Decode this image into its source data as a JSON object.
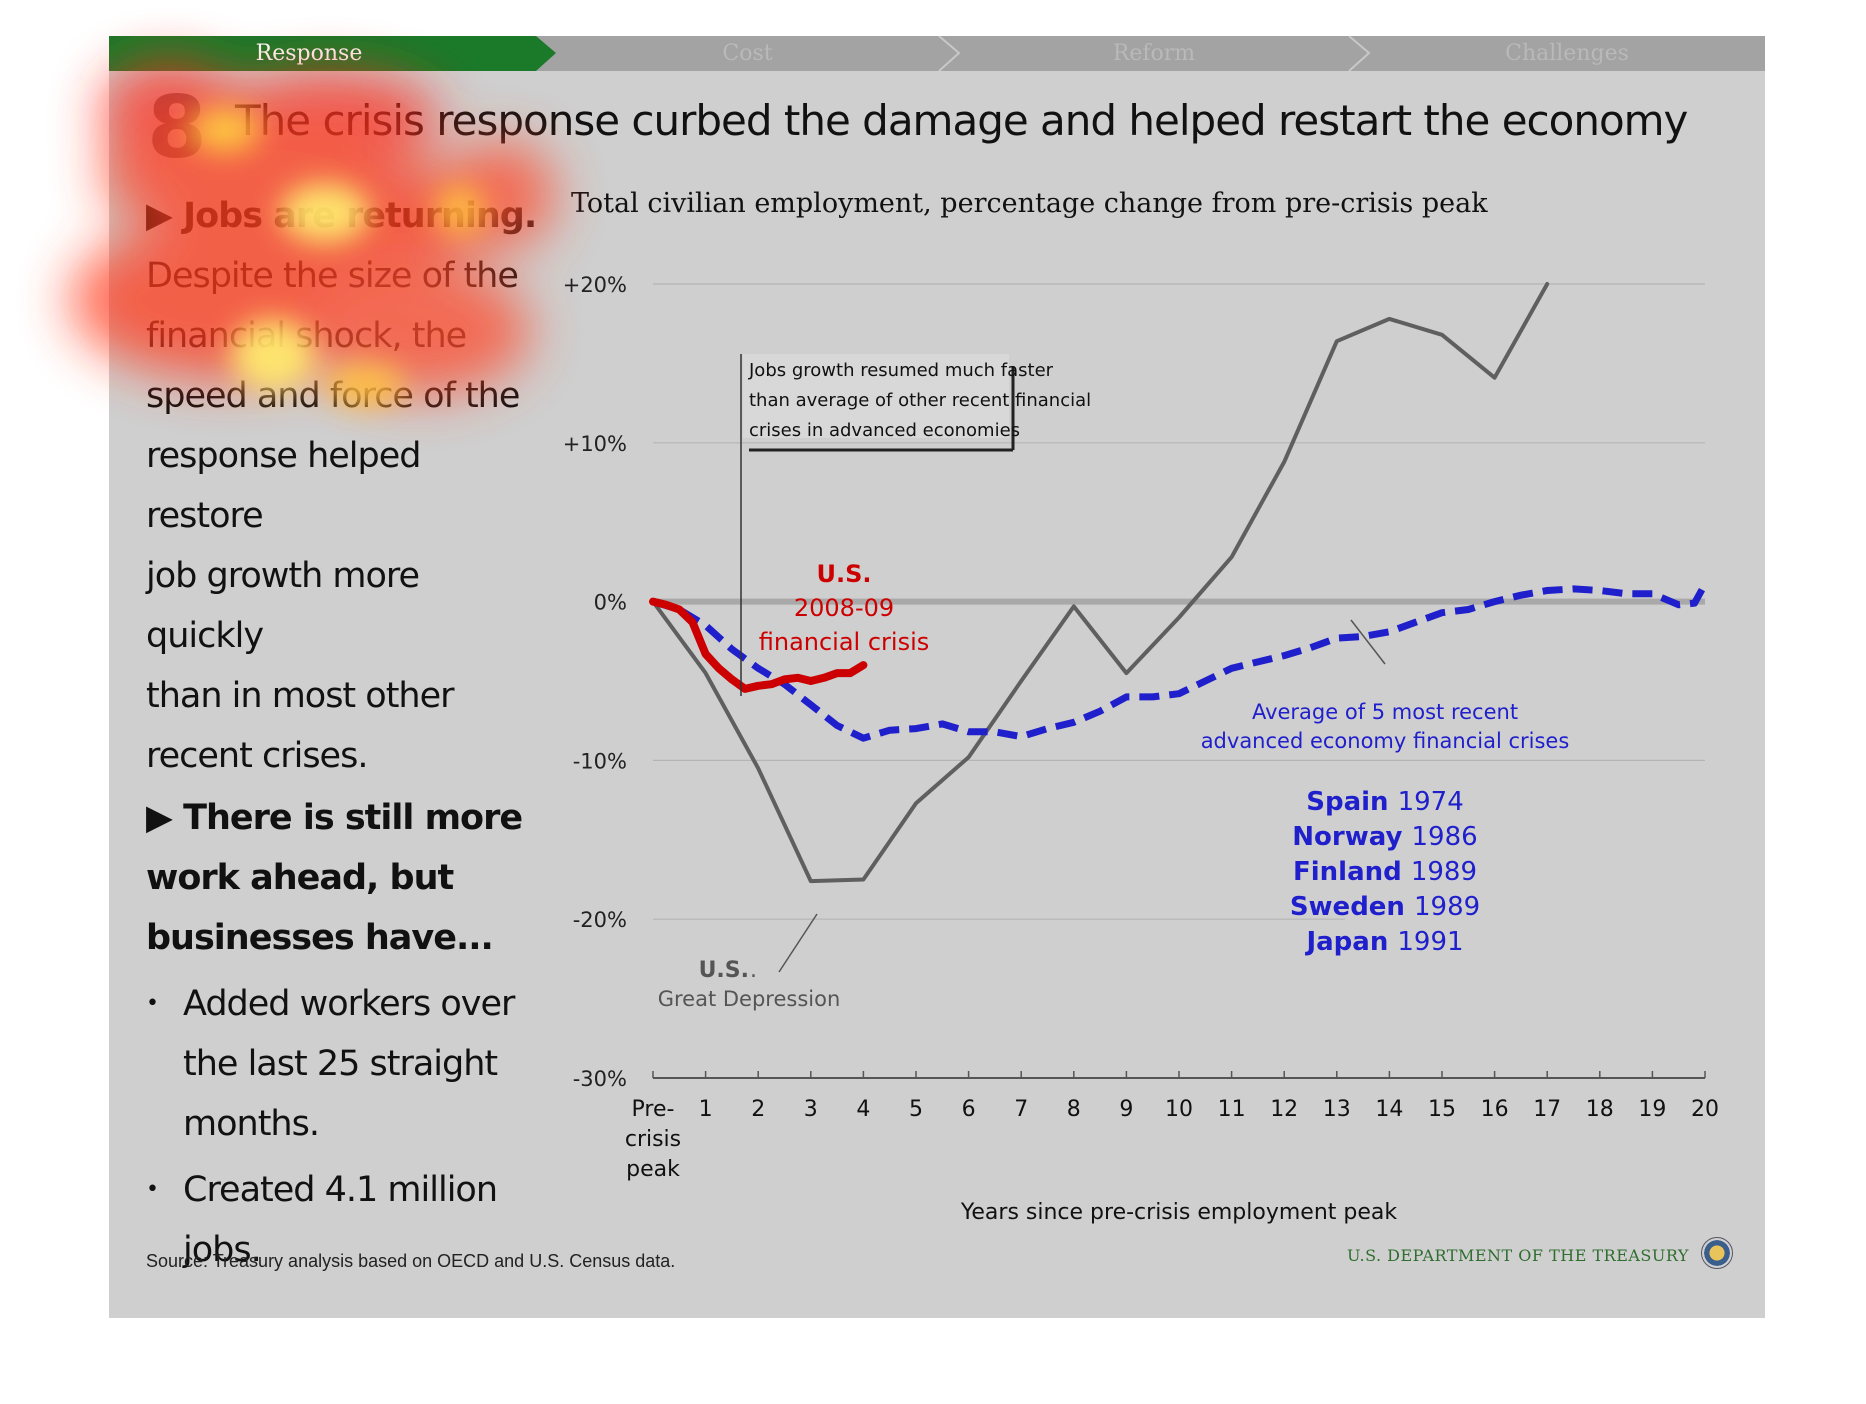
{
  "nav": {
    "tabs": [
      {
        "label": "Response",
        "active": true
      },
      {
        "label": "Cost",
        "active": false
      },
      {
        "label": "Reform",
        "active": false
      },
      {
        "label": "Challenges",
        "active": false
      }
    ],
    "active_color": "#1a7a2a"
  },
  "slide": {
    "number": "8",
    "title": "The crisis response curbed the damage and helped restart the economy"
  },
  "left": {
    "heading1_arrow": "▶",
    "heading1": "Jobs are returning.",
    "body1_lines": [
      "Despite the size of the",
      "financial shock, the",
      "speed and force of the",
      "response helped restore",
      "job growth more quickly",
      "than in most other",
      "recent crises."
    ],
    "heading2_lines": [
      "There is still more",
      "work ahead, but",
      "businesses have..."
    ],
    "bullet_mark": "•",
    "bullet1_lines": [
      "Added workers over",
      "the last 25 straight",
      "months."
    ],
    "bullet2_lines": [
      "Created 4.1 million",
      "jobs."
    ]
  },
  "chart_data": {
    "type": "line",
    "title": "Total civilian employment, percentage change from pre-crisis peak",
    "xlabel": "Years since pre-crisis employment peak",
    "ylabel": "",
    "xlim": [
      0,
      20
    ],
    "ylim": [
      -30,
      20
    ],
    "x_tick_labels": [
      "Pre-\ncrisis\npeak",
      "1",
      "2",
      "3",
      "4",
      "5",
      "6",
      "7",
      "8",
      "9",
      "10",
      "11",
      "12",
      "13",
      "14",
      "15",
      "16",
      "17",
      "18",
      "19",
      "20"
    ],
    "y_ticks": [
      {
        "value": 20,
        "label": "+20%"
      },
      {
        "value": 10,
        "label": "+10%"
      },
      {
        "value": 0,
        "label": "0%"
      },
      {
        "value": -10,
        "label": "-10%"
      },
      {
        "value": -20,
        "label": "-20%"
      },
      {
        "value": -30,
        "label": "-30%"
      }
    ],
    "series": [
      {
        "name": "U.S. Great Depression",
        "color": "#5f5f5f",
        "style": "solid",
        "x": [
          0,
          1,
          2,
          3,
          4,
          5,
          6,
          7,
          8,
          9,
          10,
          11,
          12,
          13,
          14,
          15,
          16,
          17
        ],
        "values": [
          0,
          -4.5,
          -10.5,
          -17.6,
          -17.5,
          -12.7,
          -9.8,
          -5.0,
          -0.3,
          -4.5,
          -1.0,
          2.8,
          8.8,
          16.4,
          17.8,
          16.8,
          14.1,
          20.0
        ]
      },
      {
        "name": "Average of 5 most recent advanced economy financial crises",
        "color": "#1f1fcc",
        "style": "dashed",
        "x": [
          0,
          0.5,
          1,
          1.5,
          2,
          2.5,
          3,
          3.5,
          4,
          4.5,
          5,
          5.5,
          6,
          6.5,
          7,
          7.5,
          8,
          8.5,
          9,
          9.5,
          10,
          10.5,
          11,
          11.5,
          12,
          12.5,
          13,
          13.5,
          14,
          14.5,
          15,
          15.5,
          16,
          16.5,
          17,
          17.5,
          18,
          18.5,
          19,
          19.5,
          19.8,
          20
        ],
        "values": [
          0,
          -0.5,
          -1.5,
          -3.0,
          -4.2,
          -5.2,
          -6.5,
          -7.8,
          -8.6,
          -8.1,
          -8.0,
          -7.7,
          -8.2,
          -8.2,
          -8.5,
          -8.0,
          -7.6,
          -6.9,
          -6.0,
          -6.0,
          -5.8,
          -5.0,
          -4.2,
          -3.8,
          -3.4,
          -2.9,
          -2.3,
          -2.2,
          -1.9,
          -1.3,
          -0.7,
          -0.5,
          0.0,
          0.4,
          0.7,
          0.8,
          0.7,
          0.5,
          0.5,
          -0.2,
          -0.1,
          1.1
        ]
      },
      {
        "name": "U.S. 2008-09 financial crisis",
        "color": "#cc0000",
        "style": "solid",
        "x": [
          0,
          0.25,
          0.5,
          0.75,
          1,
          1.25,
          1.5,
          1.75,
          2,
          2.25,
          2.5,
          2.75,
          3,
          3.25,
          3.5,
          3.75,
          4
        ],
        "values": [
          0,
          -0.2,
          -0.5,
          -1.3,
          -3.3,
          -4.2,
          -4.9,
          -5.5,
          -5.3,
          -5.2,
          -4.9,
          -4.8,
          -5.0,
          -4.8,
          -4.5,
          -4.5,
          -4.0
        ]
      }
    ],
    "annotations": {
      "callout": [
        "Jobs growth resumed much faster",
        "than average of other recent financial",
        "crises in advanced economies"
      ],
      "us_crisis": [
        "U.S.",
        "2008-09",
        "financial crisis"
      ],
      "depression": [
        "U.S.",
        ".",
        "Great Depression"
      ],
      "average": [
        "Average of 5 most recent",
        "advanced economy financial crises"
      ],
      "countries": [
        {
          "name": "Spain",
          "year": "1974"
        },
        {
          "name": "Norway",
          "year": "1986"
        },
        {
          "name": "Finland",
          "year": "1989"
        },
        {
          "name": "Sweden",
          "year": "1989"
        },
        {
          "name": "Japan",
          "year": "1991"
        }
      ]
    }
  },
  "footer": {
    "source": "Source: Treasury analysis based on OECD and U.S. Census data.",
    "org": "U.S. DEPARTMENT OF THE TREASURY"
  }
}
